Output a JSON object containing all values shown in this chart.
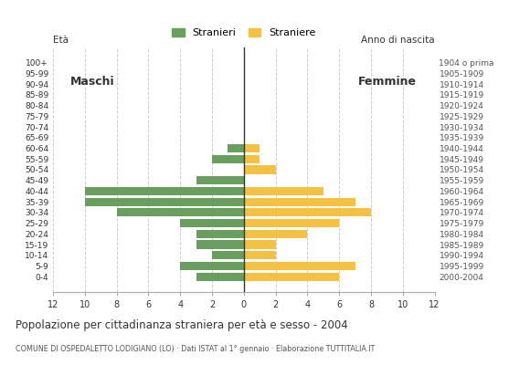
{
  "age_groups": [
    "100+",
    "95-99",
    "90-94",
    "85-89",
    "80-84",
    "75-79",
    "70-74",
    "65-69",
    "60-64",
    "55-59",
    "50-54",
    "45-49",
    "40-44",
    "35-39",
    "30-34",
    "25-29",
    "20-24",
    "15-19",
    "10-14",
    "5-9",
    "0-4"
  ],
  "birth_years": [
    "1904 o prima",
    "1905-1909",
    "1910-1914",
    "1915-1919",
    "1920-1924",
    "1925-1929",
    "1930-1934",
    "1935-1939",
    "1940-1944",
    "1945-1949",
    "1950-1954",
    "1955-1959",
    "1960-1964",
    "1965-1969",
    "1970-1974",
    "1975-1979",
    "1980-1984",
    "1985-1989",
    "1990-1994",
    "1995-1999",
    "2000-2004"
  ],
  "males": [
    0,
    0,
    0,
    0,
    0,
    0,
    0,
    0,
    1,
    2,
    0,
    3,
    10,
    10,
    8,
    4,
    3,
    3,
    2,
    4,
    3
  ],
  "females": [
    0,
    0,
    0,
    0,
    0,
    0,
    0,
    0,
    1,
    1,
    2,
    0,
    5,
    7,
    8,
    6,
    4,
    2,
    2,
    7,
    6
  ],
  "male_color": "#6a9e5e",
  "female_color": "#f5c142",
  "title": "Popolazione per cittadinanza straniera per età e sesso - 2004",
  "subtitle": "COMUNE DI OSPEDALETTO LODIGIANO (LO) · Dati ISTAT al 1° gennaio · Elaborazione TUTTITALIA.IT",
  "xlabel_left": "Età",
  "xlabel_right": "Anno di nascita",
  "legend_male": "Stranieri",
  "legend_female": "Straniere",
  "label_maschi": "Maschi",
  "label_femmine": "Femmine",
  "xlim": 12,
  "background_color": "#ffffff",
  "grid_color": "#cccccc"
}
